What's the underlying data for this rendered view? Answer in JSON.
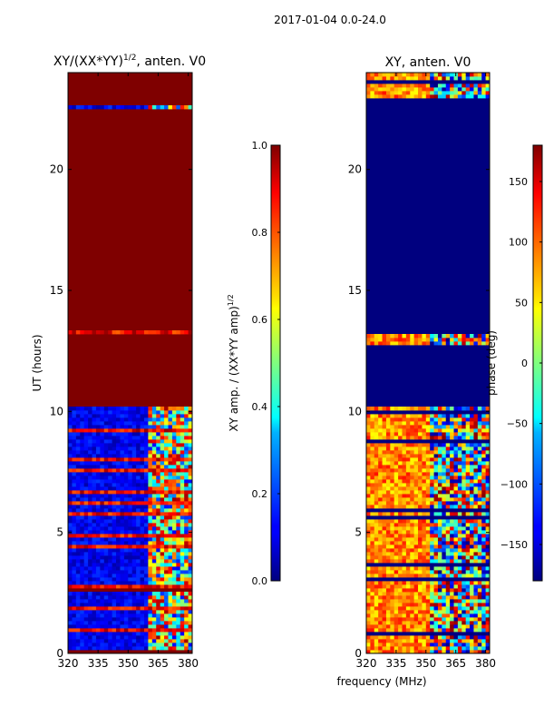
{
  "suptitle": "2017-01-04 0.0-24.0",
  "chart_data": [
    {
      "type": "heatmap",
      "id": "amp",
      "title": "XY/(XX*YY)",
      "title_sup": "1/2",
      "title_suffix": ", anten. V0",
      "xlabel": "",
      "ylabel": "UT (hours)",
      "xlim": [
        320,
        382
      ],
      "ylim": [
        0,
        24
      ],
      "x_ticks": [
        320,
        335,
        350,
        365,
        380
      ],
      "y_ticks": [
        0,
        5,
        10,
        15,
        20
      ],
      "colorbar": {
        "label": "XY amp. / (XX*YY amp)",
        "label_sup": "1/2",
        "range": [
          0.0,
          1.0
        ],
        "ticks": [
          "0.0",
          "0.2",
          "0.4",
          "0.6",
          "0.8",
          "1.0"
        ],
        "tick_values": [
          0.0,
          0.2,
          0.4,
          0.6,
          0.8,
          1.0
        ],
        "colormap": "jet"
      },
      "saturated_blocks_hours": [
        [
          22.6,
          24.0
        ],
        [
          13.35,
          22.45
        ],
        [
          10.25,
          13.2
        ],
        [
          2.55,
          2.75
        ],
        [
          0.0,
          0.2
        ]
      ]
    },
    {
      "type": "heatmap",
      "id": "phase",
      "title": "XY, anten. V0",
      "xlabel": "frequency (MHz)",
      "ylabel": "",
      "xlim": [
        320,
        382
      ],
      "ylim": [
        0,
        24
      ],
      "x_ticks": [
        320,
        335,
        350,
        365,
        380
      ],
      "y_ticks": [
        0,
        5,
        10,
        15,
        20
      ],
      "colorbar": {
        "label": "phase (deg)",
        "range": [
          -180,
          180
        ],
        "ticks": [
          "150",
          "100",
          "50",
          "0",
          "−50",
          "−100",
          "−150"
        ],
        "tick_values": [
          150,
          100,
          50,
          0,
          -50,
          -100,
          -150
        ],
        "colormap": "jet"
      },
      "uniform_blocks_hours": [
        [
          13.2,
          22.9
        ],
        [
          10.2,
          12.7
        ]
      ]
    }
  ]
}
